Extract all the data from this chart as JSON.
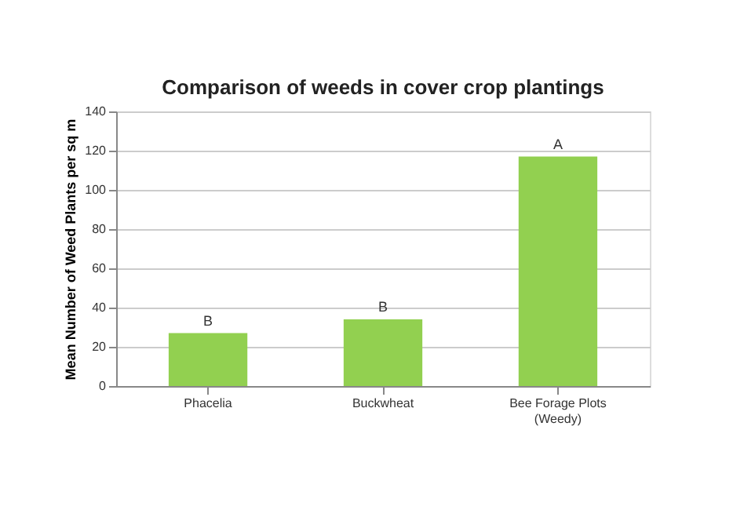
{
  "chart_data": {
    "type": "bar",
    "title": "Comparison of weeds in cover crop plantings",
    "ylabel": "Mean Number of Weed Plants per sq m",
    "categories": [
      "Phacelia",
      "Buckwheat",
      "Bee Forage Plots (Weedy)"
    ],
    "values": [
      27,
      34,
      117
    ],
    "color": "#92d050",
    "ylim": [
      0,
      140
    ],
    "yticks": [
      0,
      20,
      40,
      60,
      80,
      100,
      120,
      140
    ],
    "grid": "y",
    "annotations": [
      {
        "text": "B",
        "x": "Phacelia",
        "y": 27
      },
      {
        "text": "B",
        "x": "Buckwheat",
        "y": 34
      },
      {
        "text": "A",
        "x": "Bee Forage Plots (Weedy)",
        "y": 117
      }
    ]
  }
}
